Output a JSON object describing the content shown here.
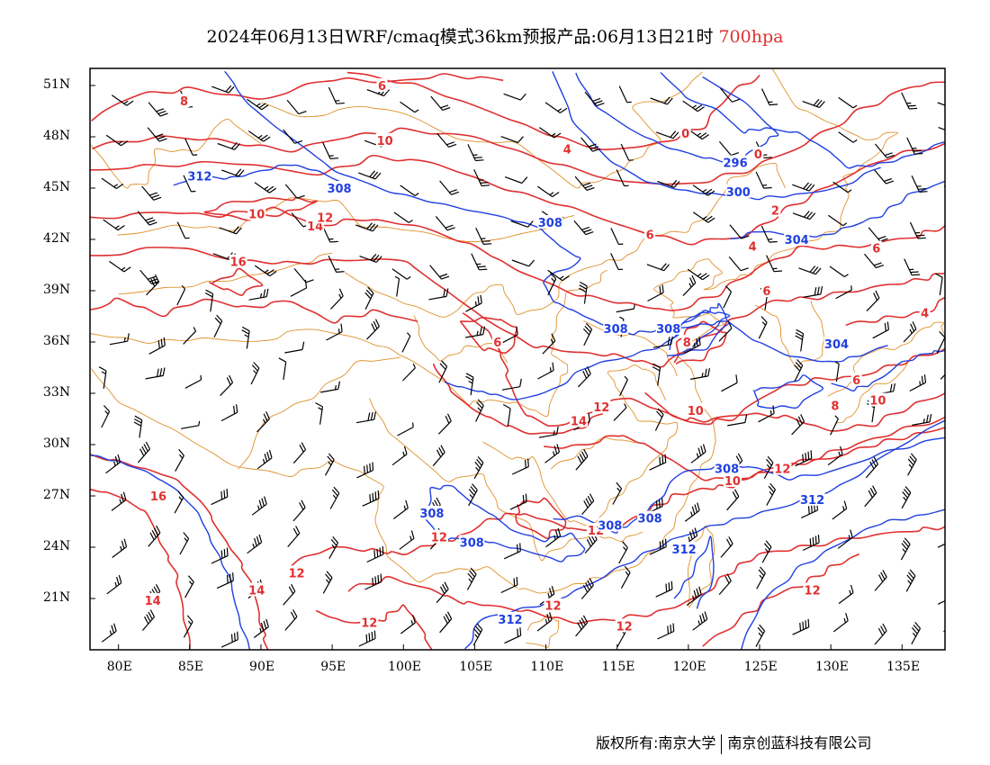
{
  "title": {
    "main": "2024年06月13日WRF/cmaq模式36km预报产品:06月13日21时",
    "level": "700hpa",
    "level_color": "#e03030"
  },
  "axes": {
    "lat_labels": [
      "51N",
      "48N",
      "45N",
      "42N",
      "39N",
      "36N",
      "33N",
      "30N",
      "27N",
      "24N",
      "21N"
    ],
    "lon_labels": [
      "80E",
      "85E",
      "90E",
      "95E",
      "100E",
      "105E",
      "110E",
      "115E",
      "120E",
      "125E",
      "130E",
      "135E"
    ]
  },
  "contours": {
    "height_color": "#2040e0",
    "temp_color": "#e03030",
    "border_color": "#e0902a",
    "height_labels": [
      {
        "text": "312",
        "lon": 85.7,
        "lat": 45.7
      },
      {
        "text": "308",
        "lon": 95.5,
        "lat": 45.0
      },
      {
        "text": "308",
        "lon": 110.3,
        "lat": 43.0
      },
      {
        "text": "296",
        "lon": 123.3,
        "lat": 46.5
      },
      {
        "text": "300",
        "lon": 123.5,
        "lat": 44.8
      },
      {
        "text": "304",
        "lon": 127.6,
        "lat": 42.0
      },
      {
        "text": "308",
        "lon": 114.9,
        "lat": 36.8
      },
      {
        "text": "308",
        "lon": 118.6,
        "lat": 36.8
      },
      {
        "text": "304",
        "lon": 130.4,
        "lat": 35.9
      },
      {
        "text": "308",
        "lon": 102.0,
        "lat": 26.0
      },
      {
        "text": "308",
        "lon": 104.8,
        "lat": 24.3
      },
      {
        "text": "308",
        "lon": 114.5,
        "lat": 25.3
      },
      {
        "text": "308",
        "lon": 117.3,
        "lat": 25.7
      },
      {
        "text": "308",
        "lon": 122.7,
        "lat": 28.6
      },
      {
        "text": "312",
        "lon": 128.7,
        "lat": 26.8
      },
      {
        "text": "312",
        "lon": 119.7,
        "lat": 23.9
      },
      {
        "text": "312",
        "lon": 107.5,
        "lat": 19.8
      }
    ],
    "temp_labels": [
      {
        "text": "8",
        "lon": 84.6,
        "lat": 50.1
      },
      {
        "text": "6",
        "lon": 98.5,
        "lat": 51.0
      },
      {
        "text": "10",
        "lon": 98.7,
        "lat": 47.8
      },
      {
        "text": "4",
        "lon": 111.5,
        "lat": 47.3
      },
      {
        "text": "0",
        "lon": 119.8,
        "lat": 48.2
      },
      {
        "text": "0",
        "lon": 124.9,
        "lat": 47.0
      },
      {
        "text": "2",
        "lon": 126.1,
        "lat": 43.7
      },
      {
        "text": "10",
        "lon": 89.7,
        "lat": 43.5
      },
      {
        "text": "14",
        "lon": 93.8,
        "lat": 42.8
      },
      {
        "text": "12",
        "lon": 94.5,
        "lat": 43.3
      },
      {
        "text": "16",
        "lon": 88.4,
        "lat": 40.7
      },
      {
        "text": "6",
        "lon": 117.3,
        "lat": 42.3
      },
      {
        "text": "4",
        "lon": 124.5,
        "lat": 41.6
      },
      {
        "text": "6",
        "lon": 125.5,
        "lat": 39.0
      },
      {
        "text": "6",
        "lon": 133.2,
        "lat": 41.5
      },
      {
        "text": "4",
        "lon": 136.6,
        "lat": 37.7
      },
      {
        "text": "6",
        "lon": 106.6,
        "lat": 36.0
      },
      {
        "text": "8",
        "lon": 119.9,
        "lat": 36.0
      },
      {
        "text": "6",
        "lon": 131.8,
        "lat": 33.8
      },
      {
        "text": "12",
        "lon": 113.9,
        "lat": 32.2
      },
      {
        "text": "14",
        "lon": 112.3,
        "lat": 31.4
      },
      {
        "text": "10",
        "lon": 120.5,
        "lat": 32.0
      },
      {
        "text": "8",
        "lon": 130.3,
        "lat": 32.3
      },
      {
        "text": "10",
        "lon": 133.3,
        "lat": 32.6
      },
      {
        "text": "12",
        "lon": 126.6,
        "lat": 28.6
      },
      {
        "text": "10",
        "lon": 123.1,
        "lat": 27.9
      },
      {
        "text": "16",
        "lon": 82.8,
        "lat": 27.0
      },
      {
        "text": "12",
        "lon": 102.5,
        "lat": 24.6
      },
      {
        "text": "12",
        "lon": 113.5,
        "lat": 25.0
      },
      {
        "text": "12",
        "lon": 92.5,
        "lat": 22.5
      },
      {
        "text": "14",
        "lon": 82.4,
        "lat": 20.9
      },
      {
        "text": "14",
        "lon": 89.7,
        "lat": 21.5
      },
      {
        "text": "12",
        "lon": 110.5,
        "lat": 20.6
      },
      {
        "text": "12",
        "lon": 128.7,
        "lat": 21.5
      },
      {
        "text": "12",
        "lon": 115.5,
        "lat": 19.4
      },
      {
        "text": "12",
        "lon": 97.6,
        "lat": 19.6
      }
    ]
  },
  "footer": {
    "left": "版权所有:南京大学",
    "right": "南京创蓝科技有限公司"
  }
}
